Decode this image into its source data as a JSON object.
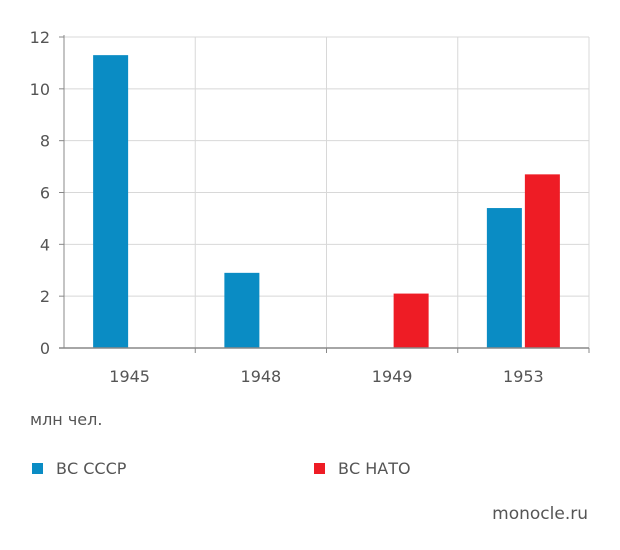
{
  "chart_data": {
    "type": "bar",
    "categories": [
      "1945",
      "1948",
      "1949",
      "1953"
    ],
    "series": [
      {
        "name": "ВС СССР",
        "values": [
          11.3,
          2.9,
          null,
          5.4
        ],
        "color": "#0a8cc4"
      },
      {
        "name": "ВС НАТО",
        "values": [
          null,
          null,
          2.1,
          6.7
        ],
        "color": "#ee1c25"
      }
    ],
    "ylim": [
      0,
      12
    ],
    "yticks": [
      "0",
      "2",
      "4",
      "6",
      "8",
      "10",
      "12"
    ],
    "grid": true,
    "unit_label": "млн чел.",
    "legend_position": "bottom"
  },
  "source": "monocle.ru"
}
